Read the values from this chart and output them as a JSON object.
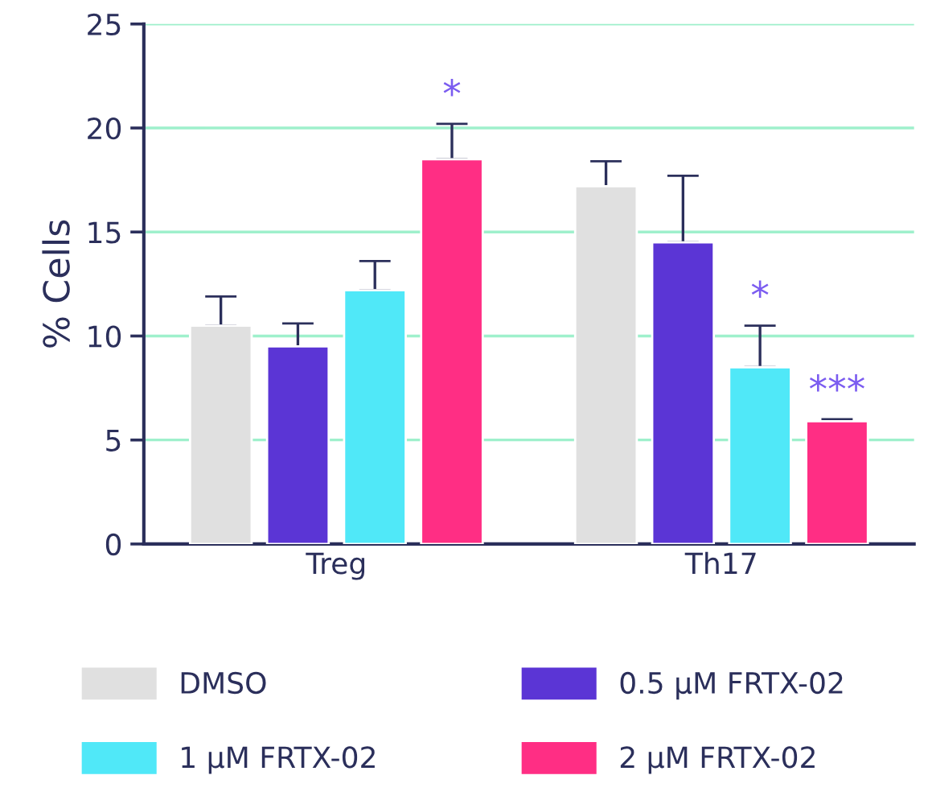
{
  "chart_data": {
    "type": "bar",
    "ylabel": "% Cells",
    "categories": [
      "Treg",
      "Th17"
    ],
    "series": [
      {
        "name": "DMSO",
        "color": "#e0e0e0",
        "values": [
          10.5,
          17.2
        ],
        "errors": [
          [
            10.5,
            11.9
          ],
          [
            17.2,
            18.4
          ]
        ]
      },
      {
        "name": "0.5 μM FRTX-02",
        "color": "#5b35d5",
        "values": [
          9.5,
          14.5
        ],
        "errors": [
          [
            9.5,
            10.6
          ],
          [
            14.5,
            17.7
          ]
        ]
      },
      {
        "name": "1 μM FRTX-02",
        "color": "#50e8f8",
        "values": [
          12.2,
          8.5
        ],
        "errors": [
          [
            12.2,
            13.6
          ],
          [
            8.5,
            10.5
          ]
        ],
        "value_labels": [
          null,
          "*"
        ]
      },
      {
        "name": "2 μM FRTX-02",
        "color": "#ff2e84",
        "values": [
          18.5,
          5.9
        ],
        "errors": [
          [
            18.5,
            20.2
          ],
          [
            5.9,
            6.0
          ]
        ],
        "value_labels": [
          "*",
          "***"
        ]
      }
    ],
    "ylim": [
      0,
      25
    ],
    "yticks": [
      0,
      5,
      10,
      15,
      20,
      25
    ],
    "grid": "y",
    "legend": "bottom"
  }
}
